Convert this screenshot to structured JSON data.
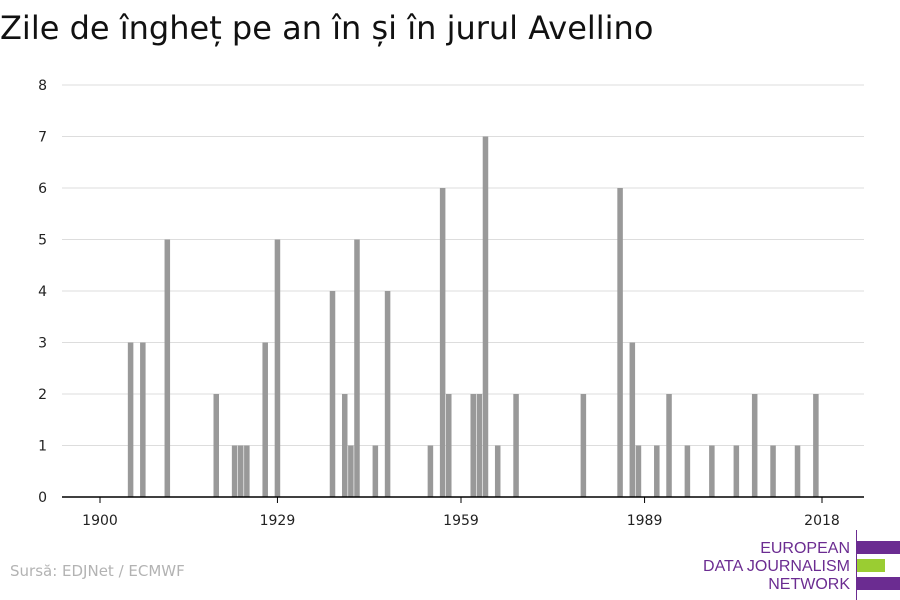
{
  "chart_data": {
    "type": "bar",
    "title": "Zile de îngheț pe an în și în jurul Avellino",
    "xlabel": "",
    "ylabel": "",
    "x_ticks": [
      1900,
      1929,
      1959,
      1989,
      2018
    ],
    "xlim": [
      1900,
      2018
    ],
    "ylim": [
      0,
      8
    ],
    "y_ticks": [
      0,
      1,
      2,
      3,
      4,
      5,
      6,
      7,
      8
    ],
    "grid": true,
    "bar_color": "#999999",
    "data": [
      {
        "x": 1905,
        "y": 3
      },
      {
        "x": 1907,
        "y": 3
      },
      {
        "x": 1911,
        "y": 5
      },
      {
        "x": 1919,
        "y": 2
      },
      {
        "x": 1922,
        "y": 1
      },
      {
        "x": 1923,
        "y": 1
      },
      {
        "x": 1924,
        "y": 1
      },
      {
        "x": 1927,
        "y": 3
      },
      {
        "x": 1929,
        "y": 5
      },
      {
        "x": 1938,
        "y": 4
      },
      {
        "x": 1940,
        "y": 2
      },
      {
        "x": 1941,
        "y": 1
      },
      {
        "x": 1942,
        "y": 5
      },
      {
        "x": 1945,
        "y": 1
      },
      {
        "x": 1947,
        "y": 4
      },
      {
        "x": 1954,
        "y": 1
      },
      {
        "x": 1956,
        "y": 6
      },
      {
        "x": 1957,
        "y": 2
      },
      {
        "x": 1961,
        "y": 2
      },
      {
        "x": 1962,
        "y": 2
      },
      {
        "x": 1963,
        "y": 7
      },
      {
        "x": 1965,
        "y": 1
      },
      {
        "x": 1968,
        "y": 2
      },
      {
        "x": 1979,
        "y": 2
      },
      {
        "x": 1985,
        "y": 6
      },
      {
        "x": 1987,
        "y": 3
      },
      {
        "x": 1988,
        "y": 1
      },
      {
        "x": 1991,
        "y": 1
      },
      {
        "x": 1993,
        "y": 2
      },
      {
        "x": 1996,
        "y": 1
      },
      {
        "x": 2000,
        "y": 1
      },
      {
        "x": 2004,
        "y": 1
      },
      {
        "x": 2007,
        "y": 2
      },
      {
        "x": 2010,
        "y": 1
      },
      {
        "x": 2014,
        "y": 1
      },
      {
        "x": 2017,
        "y": 2
      }
    ]
  },
  "source_text": "Sursă: EDJNet / ECMWF",
  "logo": {
    "line1": "EUROPEAN",
    "line2": "DATA JOURNALISM",
    "line3": "NETWORK",
    "purple": "#6b2c91",
    "green": "#9acd32"
  }
}
